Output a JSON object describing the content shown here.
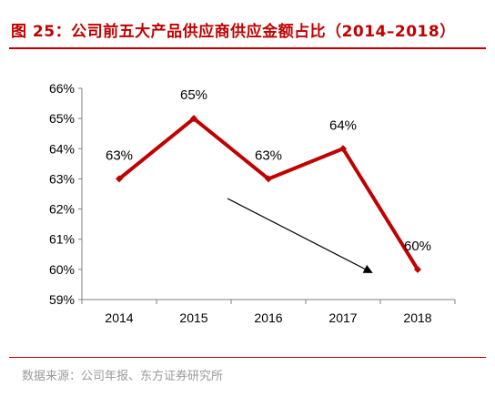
{
  "header": {
    "title": "图 25：公司前五大产品供应商供应金额占比（2014–2018）"
  },
  "footer": {
    "source": "数据来源：公司年报、东方证券研究所"
  },
  "colors": {
    "title": "#c00000",
    "series_line": "#c00000",
    "arrow": "#000000",
    "axis": "#808080"
  },
  "chart_data": {
    "type": "line",
    "x": [
      "2014",
      "2015",
      "2016",
      "2017",
      "2018"
    ],
    "series": [
      {
        "values": [
          63,
          65,
          63,
          64,
          60
        ]
      }
    ],
    "data_labels": [
      "63%",
      "65%",
      "63%",
      "64%",
      "60%"
    ],
    "y_ticks": [
      "59%",
      "60%",
      "61%",
      "62%",
      "63%",
      "64%",
      "65%",
      "66%"
    ],
    "ylim": [
      59,
      66
    ],
    "y_unit": "%",
    "grid": false,
    "legend": "none",
    "annotation": "downward-trend-arrow"
  }
}
